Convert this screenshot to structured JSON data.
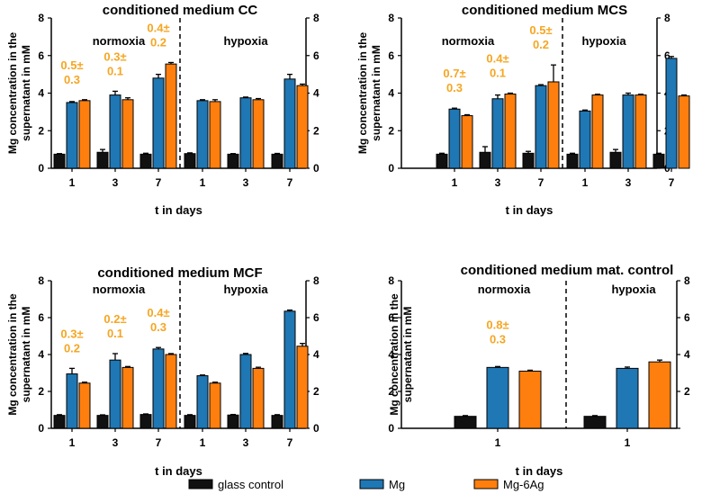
{
  "colors": {
    "glass": "#111111",
    "mg": "#1f77b4",
    "mg6ag": "#ff7f0e",
    "annotation": "#f5a623"
  },
  "legend": [
    {
      "name": "glass control",
      "color": "#111111"
    },
    {
      "name": "Mg",
      "color": "#1f77b4"
    },
    {
      "name": "Mg-6Ag",
      "color": "#ff7f0e"
    }
  ],
  "chart_data": [
    {
      "type": "bar",
      "title": "conditioned medium CC",
      "ylabel": [
        "Mg concentration in the",
        "supernatant in mM"
      ],
      "xlabel": "t in days",
      "ylim": [
        0,
        8
      ],
      "yticks": [
        "0",
        "2",
        "4",
        "6",
        "8"
      ],
      "conditions": [
        "normoxia",
        "hypoxia"
      ],
      "categories": [
        "1",
        "3",
        "7",
        "1",
        "3",
        "7"
      ],
      "series": [
        {
          "name": "glass control",
          "values": [
            0.75,
            0.85,
            0.75,
            0.78,
            0.75,
            0.75
          ],
          "errors": [
            0.03,
            0.15,
            0.05,
            0.04,
            0.03,
            0.04
          ]
        },
        {
          "name": "Mg",
          "values": [
            3.5,
            3.9,
            4.8,
            3.6,
            3.75,
            4.75
          ],
          "errors": [
            0.05,
            0.2,
            0.2,
            0.05,
            0.04,
            0.25
          ]
        },
        {
          "name": "Mg-6Ag",
          "values": [
            3.6,
            3.65,
            5.55,
            3.55,
            3.65,
            4.4
          ],
          "errors": [
            0.05,
            0.1,
            0.08,
            0.1,
            0.06,
            0.08
          ]
        }
      ],
      "annotations": [
        {
          "line1": "0.5±",
          "line2": "0.3",
          "group": 0
        },
        {
          "line1": "0.3±",
          "line2": "0.1",
          "group": 1
        },
        {
          "line1": "0.4±",
          "line2": "0.2",
          "group": 2
        }
      ]
    },
    {
      "type": "bar",
      "title": "conditioned medium MCS",
      "ylabel": [
        "Mg concentration in the",
        "supernatant in mM"
      ],
      "xlabel": "t in days",
      "ylim": [
        0,
        8
      ],
      "yticks": [
        "0",
        "2",
        "4",
        "6",
        "8"
      ],
      "conditions": [
        "normoxia",
        "hypoxia"
      ],
      "categories": [
        "1",
        "3",
        "7",
        "1",
        "3",
        "7"
      ],
      "series": [
        {
          "name": "glass control",
          "values": [
            0.75,
            0.85,
            0.8,
            0.75,
            0.85,
            0.75
          ],
          "errors": [
            0.05,
            0.3,
            0.1,
            0.05,
            0.15,
            0.05
          ]
        },
        {
          "name": "Mg",
          "values": [
            3.15,
            3.7,
            4.4,
            3.05,
            3.9,
            5.85
          ],
          "errors": [
            0.05,
            0.2,
            0.05,
            0.05,
            0.1,
            0.1
          ]
        },
        {
          "name": "Mg-6Ag",
          "values": [
            2.8,
            3.95,
            4.6,
            3.9,
            3.9,
            3.85
          ],
          "errors": [
            0.05,
            0.05,
            0.9,
            0.04,
            0.04,
            0.05
          ]
        }
      ],
      "annotations": [
        {
          "line1": "0.7±",
          "line2": "0.3",
          "group": 0
        },
        {
          "line1": "0.4±",
          "line2": "0.1",
          "group": 1
        },
        {
          "line1": "0.5±",
          "line2": "0.2",
          "group": 2
        }
      ]
    },
    {
      "type": "bar",
      "title": "conditioned medium MCF",
      "ylabel": [
        "Mg concentration in the",
        "supernatant in mM"
      ],
      "xlabel": "t in days",
      "ylim": [
        0,
        8
      ],
      "yticks": [
        "0",
        "2",
        "4",
        "6",
        "8"
      ],
      "conditions": [
        "normoxia",
        "hypoxia"
      ],
      "categories": [
        "1",
        "3",
        "7",
        "1",
        "3",
        "7"
      ],
      "series": [
        {
          "name": "glass control",
          "values": [
            0.7,
            0.7,
            0.75,
            0.7,
            0.72,
            0.7
          ],
          "errors": [
            0.04,
            0.03,
            0.03,
            0.04,
            0.03,
            0.04
          ]
        },
        {
          "name": "Mg",
          "values": [
            2.95,
            3.7,
            4.3,
            2.85,
            4.0,
            6.35
          ],
          "errors": [
            0.3,
            0.35,
            0.08,
            0.04,
            0.06,
            0.06
          ]
        },
        {
          "name": "Mg-6Ag",
          "values": [
            2.45,
            3.3,
            4.0,
            2.45,
            3.25,
            4.45
          ],
          "errors": [
            0.05,
            0.05,
            0.05,
            0.05,
            0.06,
            0.15
          ]
        }
      ],
      "annotations": [
        {
          "line1": "0.3±",
          "line2": "0.2",
          "group": 0
        },
        {
          "line1": "0.2±",
          "line2": "0.1",
          "group": 1
        },
        {
          "line1": "0.4±",
          "line2": "0.3",
          "group": 2
        }
      ]
    },
    {
      "type": "bar",
      "title": "conditioned medium mat. control",
      "ylabel": [
        "Mg concentration in the",
        "supernatant in mM"
      ],
      "xlabel": "t in days",
      "ylim": [
        0,
        8
      ],
      "yticks": [
        "0",
        "2",
        "4",
        "6",
        "8"
      ],
      "conditions": [
        "normoxia",
        "hypoxia"
      ],
      "categories": [
        "1",
        "1"
      ],
      "series": [
        {
          "name": "glass control",
          "values": [
            0.65,
            0.65
          ],
          "errors": [
            0.04,
            0.04
          ]
        },
        {
          "name": "Mg",
          "values": [
            3.3,
            3.25
          ],
          "errors": [
            0.05,
            0.07
          ]
        },
        {
          "name": "Mg-6Ag",
          "values": [
            3.1,
            3.6
          ],
          "errors": [
            0.05,
            0.1
          ]
        }
      ],
      "annotations": [
        {
          "line1": "0.8±",
          "line2": "0.3",
          "group": 0
        }
      ]
    }
  ]
}
